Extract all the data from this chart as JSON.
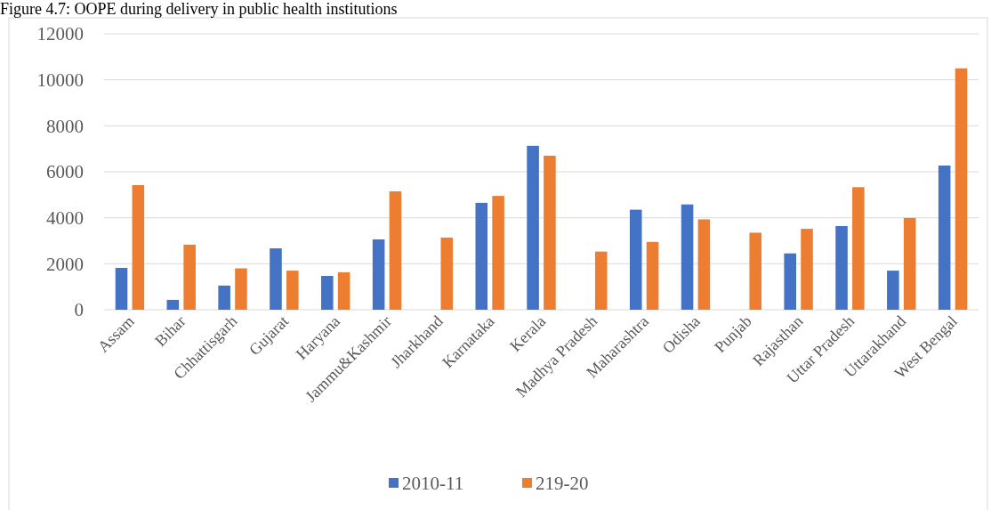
{
  "chart_data": {
    "type": "bar",
    "title": "Figure 4.7: OOPE during delivery in public health institutions",
    "categories": [
      "Assam",
      "Bihar",
      "Chhattisgarh",
      "Gujarat",
      "Haryana",
      "Jammu&Kashmir",
      "Jharkhand",
      "Karnataka",
      "Kerala",
      "Madhya Pradesh",
      "Maharashtra",
      "Odisha",
      "Punjab",
      "Rajasthan",
      "Uttar Pradesh",
      "Uttarakhand",
      "West Bengal"
    ],
    "series": [
      {
        "name": "2010-11",
        "color": "#4472c4",
        "values": [
          1820,
          430,
          1050,
          2670,
          1470,
          3060,
          null,
          4650,
          7130,
          null,
          4350,
          4580,
          null,
          2450,
          3640,
          1700,
          6270
        ]
      },
      {
        "name": "219-20",
        "color": "#ed7d31",
        "values": [
          5420,
          2830,
          1800,
          1700,
          1630,
          5150,
          3140,
          4950,
          6700,
          2530,
          2950,
          3930,
          3350,
          3520,
          5330,
          3990,
          10500
        ]
      }
    ],
    "ylim": [
      0,
      12000
    ],
    "yticks": [
      0,
      2000,
      4000,
      6000,
      8000,
      10000,
      12000
    ],
    "grid": "y",
    "legend": "bottom"
  }
}
